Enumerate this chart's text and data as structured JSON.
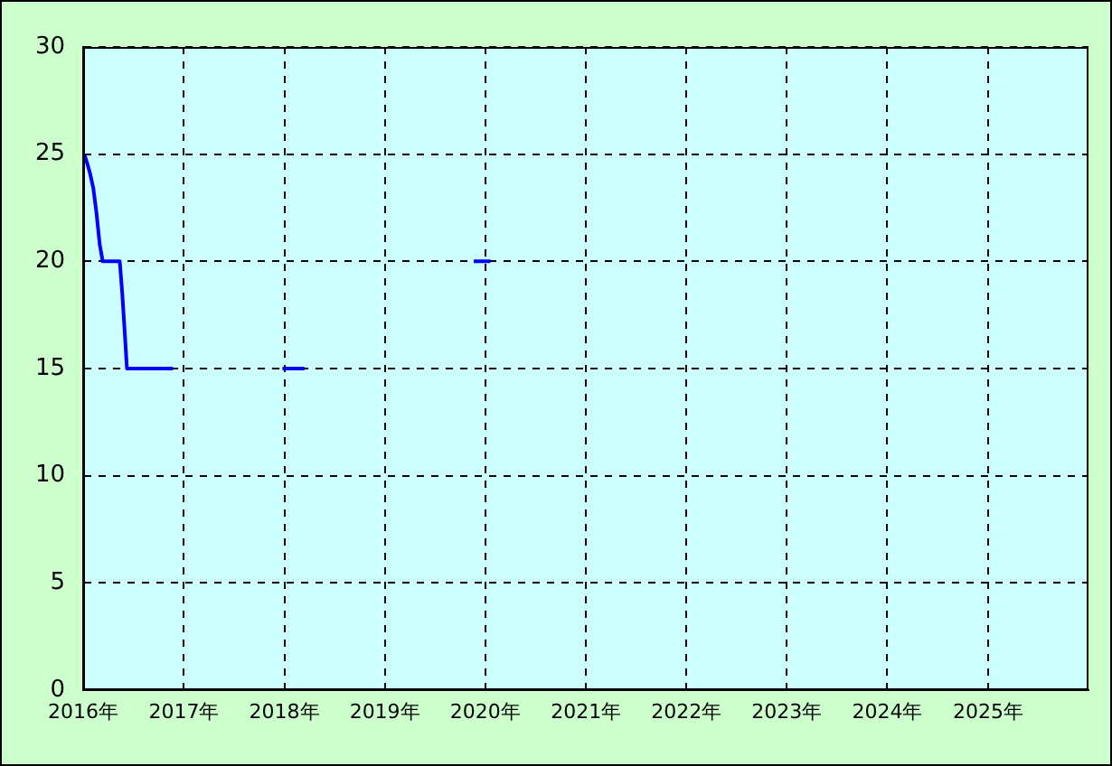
{
  "chart_data": {
    "type": "line",
    "x": [
      "2016-01-05",
      "2016-01-15",
      "2016-01-26",
      "2016-02-07",
      "2016-02-18",
      "2016-03-01",
      "2016-03-12",
      "2016-05-13",
      "2016-05-22",
      "2016-06-01",
      "2016-06-08",
      "2016-11-22",
      null,
      "2017-12-25",
      "2018-03-15",
      null,
      "2019-11-20",
      "2020-01-20"
    ],
    "series": [
      {
        "color": "#0000ff",
        "values": [
          25,
          24.6,
          24.1,
          23.4,
          22.3,
          20.8,
          20,
          20,
          18.5,
          16.5,
          15,
          15,
          null,
          15,
          15,
          null,
          20,
          20
        ]
      }
    ],
    "xlim": [
      "2016",
      "2026"
    ],
    "xticks": [
      {
        "value": "2016",
        "label": "2016年"
      },
      {
        "value": "2017",
        "label": "2017年"
      },
      {
        "value": "2018",
        "label": "2018年"
      },
      {
        "value": "2019",
        "label": "2019年"
      },
      {
        "value": "2020",
        "label": "2020年"
      },
      {
        "value": "2021",
        "label": "2021年"
      },
      {
        "value": "2022",
        "label": "2022年"
      },
      {
        "value": "2023",
        "label": "2023年"
      },
      {
        "value": "2024",
        "label": "2024年"
      },
      {
        "value": "2025",
        "label": "2025年"
      }
    ],
    "ylim": [
      0,
      30
    ],
    "yticks": [
      0,
      5,
      10,
      15,
      20,
      25,
      30
    ],
    "grid": true,
    "legend": false,
    "marker": "none",
    "line_style": "solid"
  }
}
